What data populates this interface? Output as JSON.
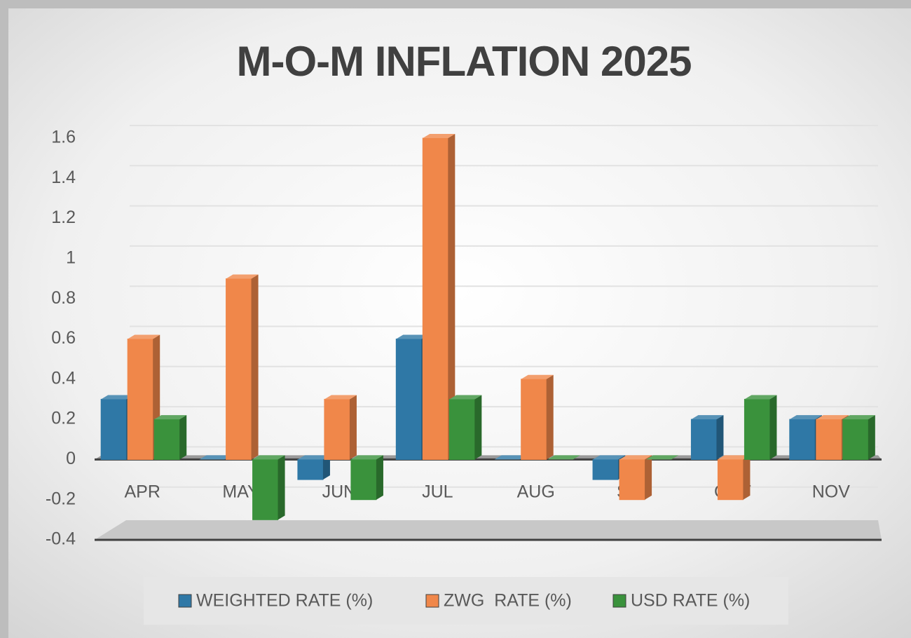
{
  "chart_data": {
    "type": "bar3d",
    "title": "M-O-M INFLATION 2025",
    "categories": [
      "APR",
      "MAY",
      "JUN",
      "JUL",
      "AUG",
      "SEP",
      "OCT",
      "NOV"
    ],
    "series": [
      {
        "name": "WEIGHTED RATE (%)",
        "color": "#2f78a6",
        "values": [
          0.3,
          0,
          -0.1,
          0.6,
          0,
          -0.1,
          0.2,
          0.2
        ]
      },
      {
        "name": "ZWG  RATE (%)",
        "color": "#f0874a",
        "values": [
          0.6,
          0.9,
          0.3,
          1.6,
          0.4,
          -0.2,
          -0.2,
          0.2
        ]
      },
      {
        "name": "USD RATE (%)",
        "color": "#3a923c",
        "values": [
          0.2,
          -0.3,
          -0.2,
          0.3,
          0,
          0,
          0.3,
          0.2
        ]
      }
    ],
    "ylim": [
      -0.4,
      1.6
    ],
    "yticks": [
      -0.4,
      -0.2,
      0,
      0.2,
      0.4,
      0.6,
      0.8,
      1,
      1.2,
      1.4,
      1.6
    ],
    "grid": true,
    "legend": "bottom"
  }
}
